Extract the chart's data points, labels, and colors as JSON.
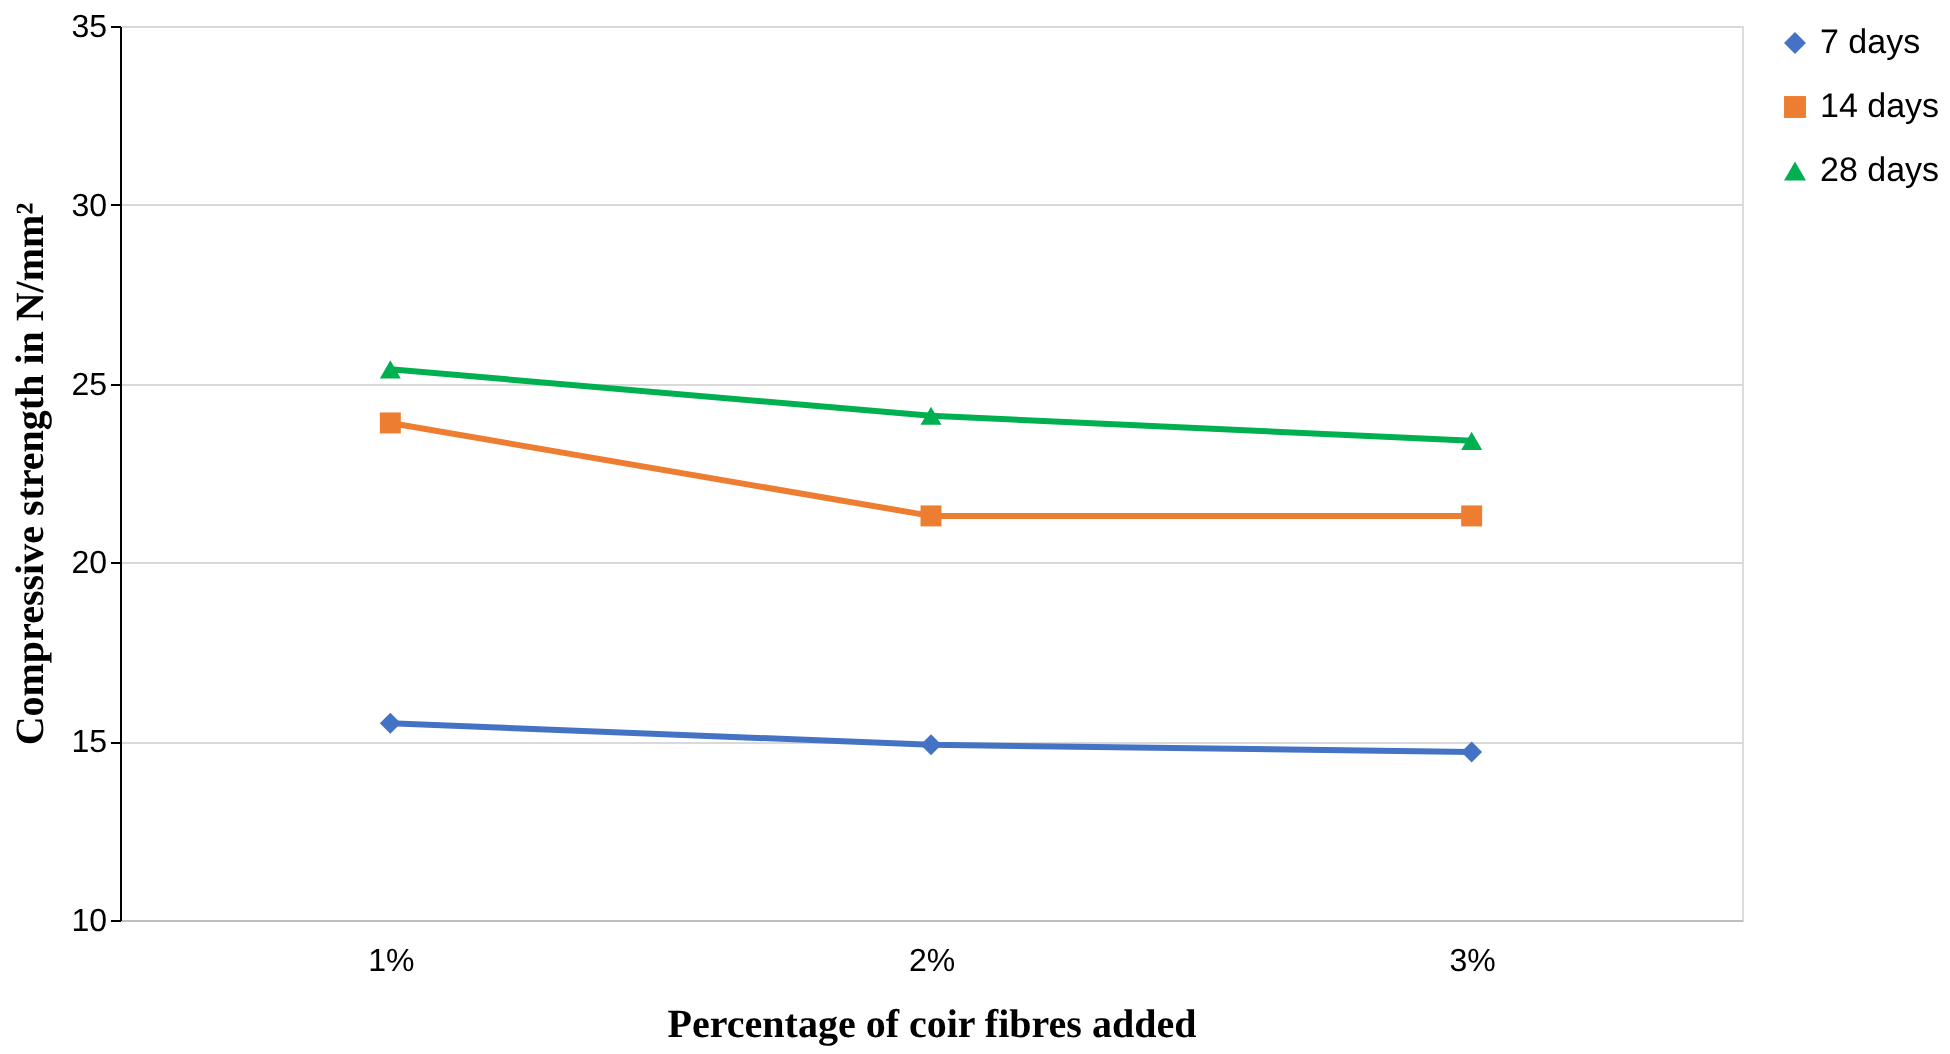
{
  "chart_data": {
    "type": "line",
    "xlabel": "Percentage of coir fibres added",
    "ylabel": "Compressive strength in N/mm²",
    "categories": [
      "1%",
      "2%",
      "3%"
    ],
    "series": [
      {
        "name": "7 days",
        "color": "#4472c4",
        "marker": "diamond",
        "values": [
          15.5,
          14.9,
          14.7
        ]
      },
      {
        "name": "14 days",
        "color": "#ed7d31",
        "marker": "square",
        "values": [
          23.9,
          21.3,
          21.3
        ]
      },
      {
        "name": "28 days",
        "color": "#00b050",
        "marker": "triangle",
        "values": [
          25.4,
          24.1,
          23.4
        ]
      }
    ],
    "ylim": [
      10,
      35
    ],
    "yticks": [
      10,
      15,
      20,
      25,
      30,
      35
    ],
    "grid": "y",
    "legend": "right",
    "line_style": "solid"
  }
}
